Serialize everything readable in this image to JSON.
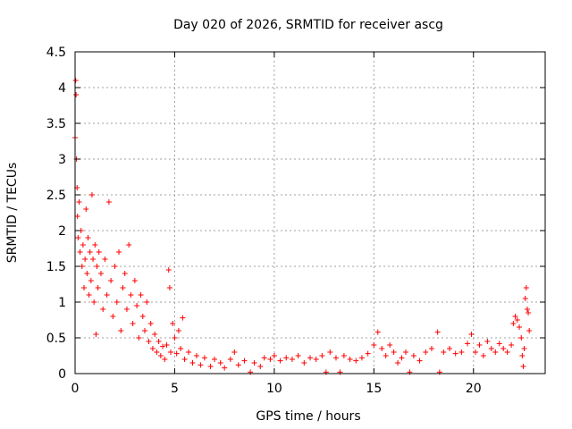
{
  "chart_data": {
    "type": "scatter",
    "title": "Day 020 of 2026, SRMTID for receiver ascg",
    "xlabel": "GPS time / hours",
    "ylabel": "SRMTID / TECUs",
    "xlim": [
      0,
      23.6
    ],
    "ylim": [
      0,
      4.5
    ],
    "xticks": [
      0,
      5,
      10,
      15,
      20
    ],
    "xtick_labels": [
      "0",
      "5",
      "10",
      "15",
      "20"
    ],
    "yticks": [
      0,
      0.5,
      1,
      1.5,
      2,
      2.5,
      3,
      3.5,
      4,
      4.5
    ],
    "ytick_labels": [
      "0",
      "0.5",
      "1",
      "1.5",
      "2",
      "2.5",
      "3",
      "3.5",
      "4",
      "4.5"
    ],
    "grid": true,
    "marker": "+",
    "series": [
      {
        "name": "SRMTID",
        "color": "#ff0000",
        "points": [
          [
            0.0,
            3.3
          ],
          [
            0.03,
            4.1
          ],
          [
            0.05,
            3.9
          ],
          [
            0.07,
            3.0
          ],
          [
            0.1,
            2.6
          ],
          [
            0.12,
            2.2
          ],
          [
            0.15,
            1.9
          ],
          [
            0.2,
            2.4
          ],
          [
            0.25,
            1.7
          ],
          [
            0.3,
            2.0
          ],
          [
            0.35,
            1.5
          ],
          [
            0.4,
            1.8
          ],
          [
            0.45,
            1.2
          ],
          [
            0.5,
            1.6
          ],
          [
            0.55,
            2.3
          ],
          [
            0.6,
            1.4
          ],
          [
            0.65,
            1.9
          ],
          [
            0.7,
            1.1
          ],
          [
            0.75,
            1.7
          ],
          [
            0.8,
            1.3
          ],
          [
            0.85,
            2.5
          ],
          [
            0.9,
            1.6
          ],
          [
            0.95,
            1.0
          ],
          [
            1.0,
            1.8
          ],
          [
            1.05,
            0.55
          ],
          [
            1.1,
            1.5
          ],
          [
            1.15,
            1.2
          ],
          [
            1.2,
            1.7
          ],
          [
            1.3,
            1.4
          ],
          [
            1.4,
            0.9
          ],
          [
            1.5,
            1.6
          ],
          [
            1.6,
            1.1
          ],
          [
            1.7,
            2.4
          ],
          [
            1.8,
            1.3
          ],
          [
            1.9,
            0.8
          ],
          [
            2.0,
            1.5
          ],
          [
            2.1,
            1.0
          ],
          [
            2.2,
            1.7
          ],
          [
            2.3,
            0.6
          ],
          [
            2.4,
            1.2
          ],
          [
            2.5,
            1.4
          ],
          [
            2.6,
            0.9
          ],
          [
            2.7,
            1.8
          ],
          [
            2.8,
            1.1
          ],
          [
            2.9,
            0.7
          ],
          [
            3.0,
            1.3
          ],
          [
            3.1,
            0.95
          ],
          [
            3.2,
            0.5
          ],
          [
            3.3,
            1.1
          ],
          [
            3.4,
            0.8
          ],
          [
            3.5,
            0.6
          ],
          [
            3.6,
            1.0
          ],
          [
            3.7,
            0.45
          ],
          [
            3.8,
            0.7
          ],
          [
            3.9,
            0.35
          ],
          [
            4.0,
            0.55
          ],
          [
            4.1,
            0.3
          ],
          [
            4.2,
            0.45
          ],
          [
            4.3,
            0.25
          ],
          [
            4.4,
            0.38
          ],
          [
            4.5,
            0.2
          ],
          [
            4.6,
            0.4
          ],
          [
            4.7,
            1.45
          ],
          [
            4.75,
            1.2
          ],
          [
            4.8,
            0.3
          ],
          [
            4.9,
            0.7
          ],
          [
            5.0,
            0.5
          ],
          [
            5.1,
            0.28
          ],
          [
            5.2,
            0.6
          ],
          [
            5.3,
            0.35
          ],
          [
            5.4,
            0.78
          ],
          [
            5.5,
            0.2
          ],
          [
            5.7,
            0.3
          ],
          [
            5.9,
            0.15
          ],
          [
            6.1,
            0.25
          ],
          [
            6.3,
            0.12
          ],
          [
            6.5,
            0.22
          ],
          [
            6.8,
            0.1
          ],
          [
            7.0,
            0.2
          ],
          [
            7.3,
            0.15
          ],
          [
            7.5,
            0.08
          ],
          [
            7.8,
            0.2
          ],
          [
            8.0,
            0.3
          ],
          [
            8.2,
            0.12
          ],
          [
            8.5,
            0.18
          ],
          [
            8.8,
            0.02
          ],
          [
            9.0,
            0.15
          ],
          [
            9.3,
            0.1
          ],
          [
            9.5,
            0.22
          ],
          [
            9.8,
            0.2
          ],
          [
            10.0,
            0.25
          ],
          [
            10.3,
            0.18
          ],
          [
            10.6,
            0.22
          ],
          [
            10.9,
            0.2
          ],
          [
            11.2,
            0.25
          ],
          [
            11.5,
            0.15
          ],
          [
            11.8,
            0.22
          ],
          [
            12.1,
            0.2
          ],
          [
            12.4,
            0.25
          ],
          [
            12.6,
            0.02
          ],
          [
            12.8,
            0.3
          ],
          [
            13.1,
            0.22
          ],
          [
            13.3,
            0.02
          ],
          [
            13.5,
            0.25
          ],
          [
            13.8,
            0.2
          ],
          [
            14.1,
            0.18
          ],
          [
            14.4,
            0.22
          ],
          [
            14.7,
            0.28
          ],
          [
            15.0,
            0.4
          ],
          [
            15.2,
            0.58
          ],
          [
            15.4,
            0.35
          ],
          [
            15.6,
            0.25
          ],
          [
            15.8,
            0.4
          ],
          [
            16.0,
            0.3
          ],
          [
            16.2,
            0.15
          ],
          [
            16.4,
            0.22
          ],
          [
            16.6,
            0.3
          ],
          [
            16.8,
            0.02
          ],
          [
            17.0,
            0.25
          ],
          [
            17.3,
            0.18
          ],
          [
            17.6,
            0.3
          ],
          [
            17.9,
            0.35
          ],
          [
            18.2,
            0.58
          ],
          [
            18.3,
            0.02
          ],
          [
            18.5,
            0.3
          ],
          [
            18.8,
            0.35
          ],
          [
            19.1,
            0.28
          ],
          [
            19.4,
            0.3
          ],
          [
            19.7,
            0.42
          ],
          [
            19.9,
            0.55
          ],
          [
            20.1,
            0.3
          ],
          [
            20.3,
            0.4
          ],
          [
            20.5,
            0.25
          ],
          [
            20.7,
            0.45
          ],
          [
            20.9,
            0.35
          ],
          [
            21.1,
            0.3
          ],
          [
            21.3,
            0.42
          ],
          [
            21.5,
            0.35
          ],
          [
            21.7,
            0.3
          ],
          [
            21.9,
            0.4
          ],
          [
            22.0,
            0.7
          ],
          [
            22.1,
            0.8
          ],
          [
            22.2,
            0.75
          ],
          [
            22.3,
            0.65
          ],
          [
            22.4,
            0.5
          ],
          [
            22.45,
            0.25
          ],
          [
            22.5,
            0.1
          ],
          [
            22.55,
            0.35
          ],
          [
            22.6,
            1.05
          ],
          [
            22.65,
            1.2
          ],
          [
            22.7,
            0.9
          ],
          [
            22.75,
            0.85
          ],
          [
            22.8,
            0.6
          ]
        ]
      }
    ]
  }
}
